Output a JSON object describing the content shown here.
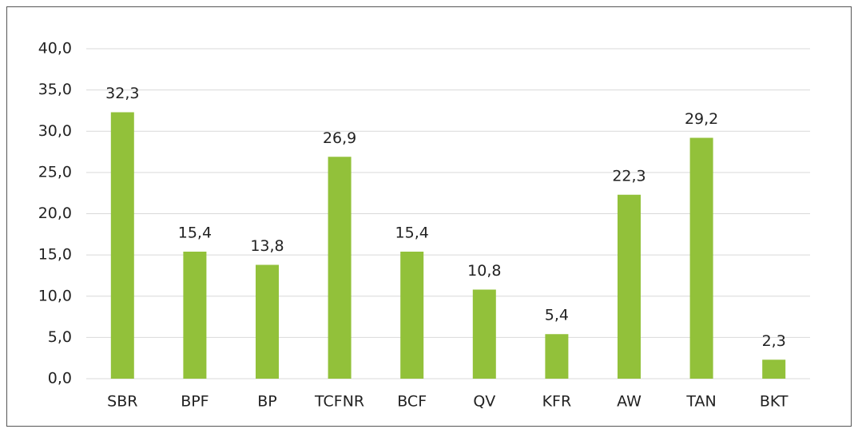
{
  "chart_data": {
    "type": "bar",
    "categories": [
      "SBR",
      "BPF",
      "BP",
      "TCFNR",
      "BCF",
      "QV",
      "KFR",
      "AW",
      "TAN",
      "BKT"
    ],
    "values": [
      32.3,
      15.4,
      13.8,
      26.9,
      15.4,
      10.8,
      5.4,
      22.3,
      29.2,
      2.3
    ],
    "value_labels": [
      "32,3",
      "15,4",
      "13,8",
      "26,9",
      "15,4",
      "10,8",
      "5,4",
      "22,3",
      "29,2",
      "2,3"
    ],
    "color": "#92c13a",
    "ylim": [
      0,
      40
    ],
    "yticks": [
      {
        "value": 0,
        "label": "0,0"
      },
      {
        "value": 5,
        "label": "5,0"
      },
      {
        "value": 10,
        "label": "10,0"
      },
      {
        "value": 15,
        "label": "15,0"
      },
      {
        "value": 20,
        "label": "20,0"
      },
      {
        "value": 25,
        "label": "25,0"
      },
      {
        "value": 30,
        "label": "30,0"
      },
      {
        "value": 35,
        "label": "35,0"
      },
      {
        "value": 40,
        "label": "40,0"
      }
    ],
    "grid": true
  }
}
